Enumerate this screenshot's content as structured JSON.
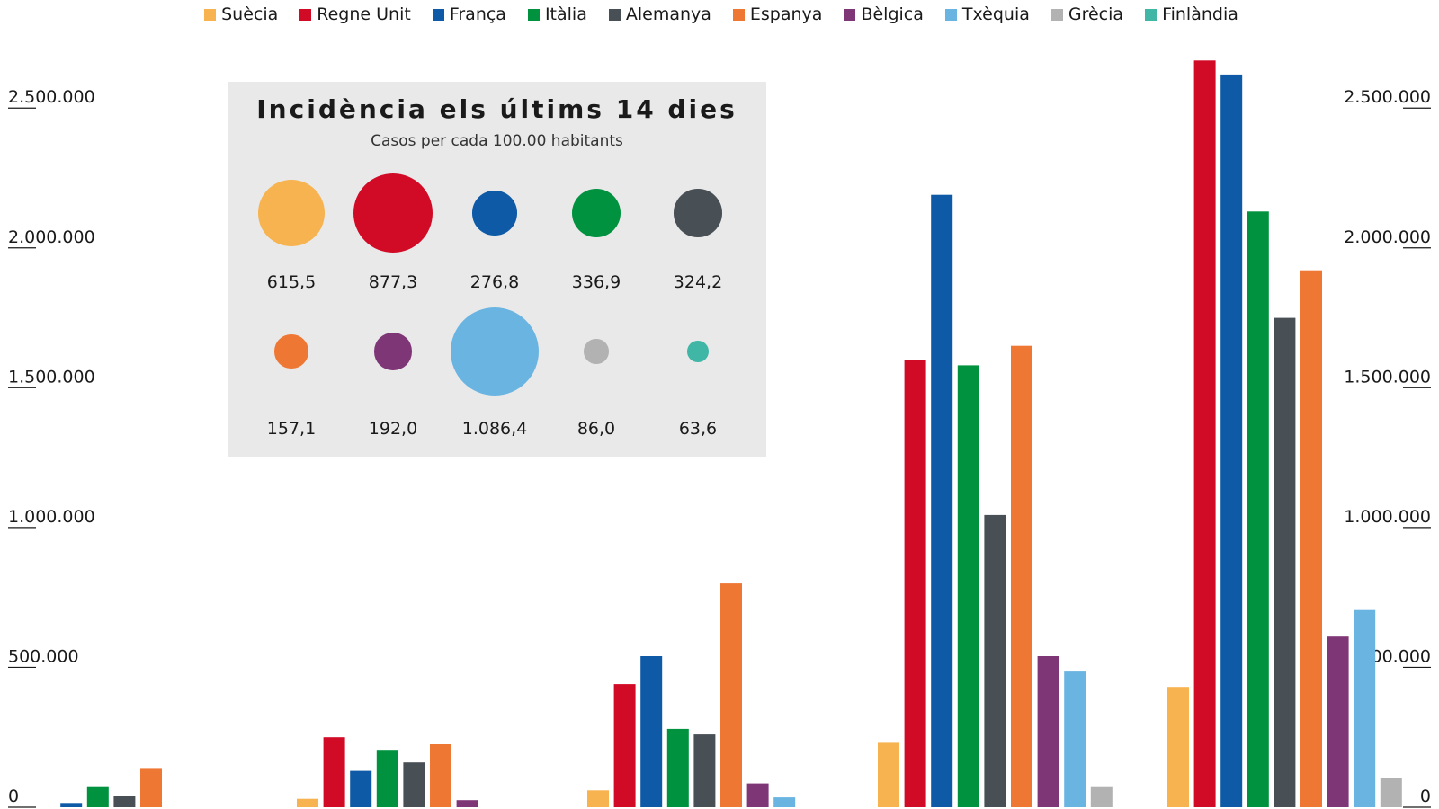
{
  "chart_data": {
    "type": "bar",
    "legend_placement": "top",
    "grid": false,
    "ylim": [
      0,
      2700000
    ],
    "y_ticks": [
      "0",
      "500.000",
      "1.000.000",
      "1.500.000",
      "2.000.000",
      "2.500.000"
    ],
    "right_axis_ticks": [
      "0",
      "500.000",
      "1.000.000",
      "1.500.000",
      "2.000.000",
      "2.500.000"
    ],
    "groups": 5,
    "series": [
      {
        "name": "Suècia",
        "color": "#f6b350",
        "values": [
          null,
          30000,
          60000,
          230000,
          430000
        ]
      },
      {
        "name": "Regne Unit",
        "color": "#d10a26",
        "values": [
          null,
          250000,
          440000,
          1600000,
          2670000
        ]
      },
      {
        "name": "França",
        "color": "#0e5aa7",
        "values": [
          15000,
          130000,
          540000,
          2190000,
          2620000
        ]
      },
      {
        "name": "Itàlia",
        "color": "#00923f",
        "values": [
          75000,
          205000,
          280000,
          1580000,
          2130000
        ]
      },
      {
        "name": "Alemanya",
        "color": "#485056",
        "values": [
          40000,
          160000,
          260000,
          1045000,
          1750000
        ]
      },
      {
        "name": "Espanya",
        "color": "#ee7734",
        "values": [
          140000,
          225000,
          800000,
          1650000,
          1920000
        ]
      },
      {
        "name": "Bèlgica",
        "color": "#7f3677",
        "values": [
          null,
          25000,
          85000,
          540000,
          610000
        ]
      },
      {
        "name": "Txèquia",
        "color": "#6ab4e2",
        "values": [
          null,
          null,
          35000,
          485000,
          705000
        ]
      },
      {
        "name": "Grècia",
        "color": "#b2b2b2",
        "values": [
          null,
          null,
          null,
          75000,
          105000
        ]
      },
      {
        "name": "Finlàndia",
        "color": "#3fb6a6",
        "values": [
          null,
          null,
          null,
          null,
          null
        ]
      }
    ],
    "inset": {
      "title": "Incidència els últims 14 dies",
      "subtitle": "Casos per cada 100.00 habitants",
      "type": "bubble",
      "bubbles": [
        {
          "country": "Suècia",
          "value": 615.5,
          "label": "615,5",
          "color": "#f6b350"
        },
        {
          "country": "Regne Unit",
          "value": 877.3,
          "label": "877,3",
          "color": "#d10a26"
        },
        {
          "country": "França",
          "value": 276.8,
          "label": "276,8",
          "color": "#0e5aa7"
        },
        {
          "country": "Itàlia",
          "value": 336.9,
          "label": "336,9",
          "color": "#00923f"
        },
        {
          "country": "Alemanya",
          "value": 324.2,
          "label": "324,2",
          "color": "#485056"
        },
        {
          "country": "Espanya",
          "value": 157.1,
          "label": "157,1",
          "color": "#ee7734"
        },
        {
          "country": "Bèlgica",
          "value": 192.0,
          "label": "192,0",
          "color": "#7f3677"
        },
        {
          "country": "Txèquia",
          "value": 1086.4,
          "label": "1.086,4",
          "color": "#6ab4e2"
        },
        {
          "country": "Grècia",
          "value": 86.0,
          "label": "86,0",
          "color": "#b2b2b2"
        },
        {
          "country": "Finlàndia",
          "value": 63.6,
          "label": "63,6",
          "color": "#3fb6a6"
        }
      ]
    }
  }
}
